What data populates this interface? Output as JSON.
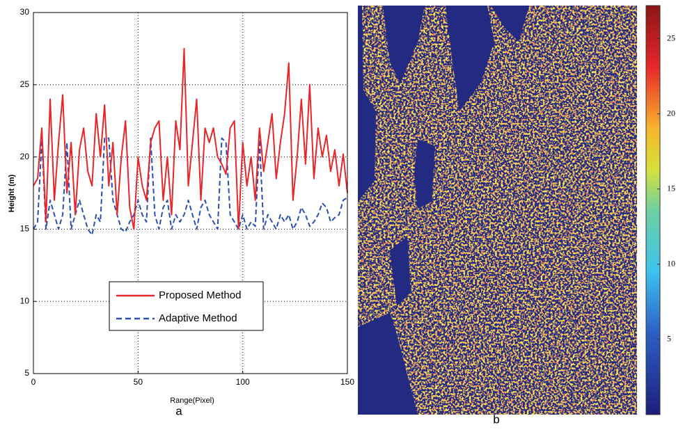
{
  "chart_data": [
    {
      "type": "line",
      "caption": "a",
      "xlabel": "Range(Pixel)",
      "ylabel": "Height (m)",
      "x": [
        0,
        2,
        4,
        6,
        8,
        10,
        12,
        14,
        16,
        18,
        20,
        22,
        24,
        26,
        28,
        30,
        32,
        34,
        36,
        38,
        40,
        42,
        44,
        46,
        48,
        50,
        52,
        54,
        56,
        58,
        60,
        62,
        64,
        66,
        68,
        70,
        72,
        74,
        76,
        78,
        80,
        82,
        84,
        86,
        88,
        90,
        92,
        94,
        96,
        98,
        100,
        102,
        104,
        106,
        108,
        110,
        112,
        114,
        116,
        118,
        120,
        122,
        124,
        126,
        128,
        130,
        132,
        134,
        136,
        138,
        140,
        142,
        144,
        146,
        148,
        150
      ],
      "series": [
        {
          "name": "Proposed Method",
          "color": "#e8262a",
          "dash": false,
          "values": [
            18,
            18.5,
            22,
            15.5,
            24,
            17,
            21,
            24.3,
            17.5,
            21,
            16,
            20.5,
            22,
            19,
            18,
            23,
            20,
            23.6,
            18,
            21,
            16,
            20,
            22.5,
            16.5,
            15,
            20,
            18,
            17,
            21,
            22,
            22.5,
            17,
            20,
            16,
            22.5,
            20.5,
            27.5,
            18,
            21,
            24,
            17,
            22,
            21,
            22,
            20,
            19.5,
            18.8,
            22,
            22.5,
            15,
            21,
            18,
            20,
            17,
            22,
            19,
            21,
            23,
            18.5,
            21,
            23,
            26.5,
            17,
            20,
            24,
            19.5,
            25,
            18.5,
            22,
            20,
            21.5,
            19,
            20.5,
            18,
            20.2,
            17.5
          ]
        },
        {
          "name": "Adaptive Method",
          "color": "#2a4fb5",
          "dash": true,
          "values": [
            15,
            15.5,
            21.2,
            15,
            17,
            16,
            15,
            16,
            21,
            15,
            16,
            17,
            16,
            15,
            14.6,
            16,
            15.5,
            21.3,
            21.3,
            17,
            16,
            15,
            14.8,
            15.5,
            16,
            17,
            16,
            15.5,
            21.3,
            16,
            15,
            16.5,
            17,
            15,
            16,
            15.5,
            16,
            17,
            16,
            15,
            16.5,
            17,
            16,
            15.5,
            15,
            21.3,
            21,
            16,
            15.5,
            15,
            16,
            15,
            15.5,
            15.2,
            21.2,
            15,
            16,
            15.5,
            15,
            16,
            15.5,
            16,
            15,
            15.5,
            16.5,
            16,
            15.2,
            15.5,
            16,
            16.8,
            16.5,
            15.5,
            15.8,
            16,
            17,
            17.2
          ]
        }
      ],
      "xlim": [
        0,
        150
      ],
      "ylim": [
        5,
        30
      ],
      "xticks": [
        0,
        50,
        100,
        150
      ],
      "yticks": [
        5,
        10,
        15,
        20,
        25,
        30
      ],
      "grid": true
    },
    {
      "type": "image",
      "caption": "b",
      "clim": [
        0,
        27.2
      ],
      "cticks": [
        5,
        10,
        15,
        20,
        25
      ]
    }
  ]
}
